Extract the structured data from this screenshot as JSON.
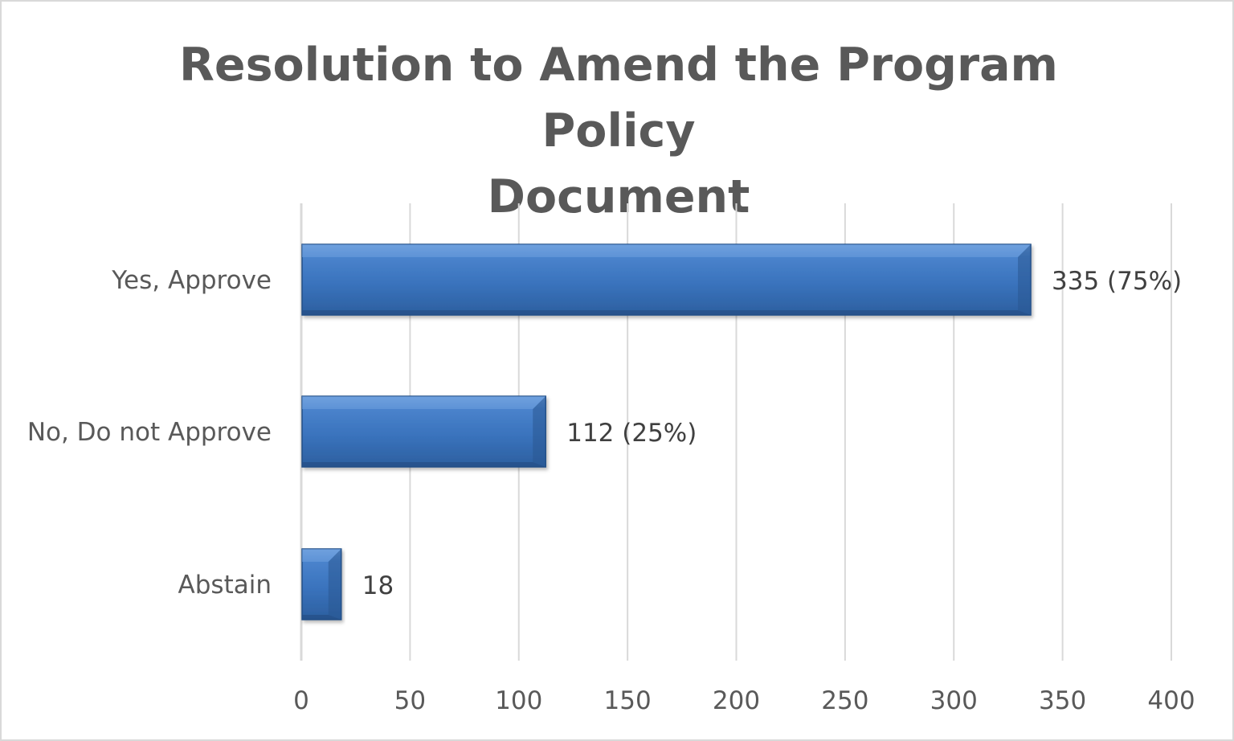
{
  "chart_data": {
    "type": "bar",
    "orientation": "horizontal",
    "title": "Resolution to Amend the Program Policy Document",
    "title_lines": [
      "Resolution to Amend the Program Policy",
      "Document"
    ],
    "categories": [
      "Yes, Approve",
      "No, Do not Approve",
      "Abstain"
    ],
    "values": [
      335,
      112,
      18
    ],
    "data_labels": [
      "335 (75%)",
      "112 (25%)",
      "18"
    ],
    "xlim": [
      0,
      400
    ],
    "xticks": [
      0,
      50,
      100,
      150,
      200,
      250,
      300,
      350,
      400
    ],
    "xtick_labels": [
      "0",
      "50",
      "100",
      "150",
      "200",
      "250",
      "300",
      "350",
      "400"
    ],
    "grid": true,
    "legend": "none",
    "bar_color": "#3a73bd",
    "bar_edge_color": "#244f87",
    "bar_highlight_color": "#6fa1de",
    "grid_color": "#d9d9d9"
  }
}
